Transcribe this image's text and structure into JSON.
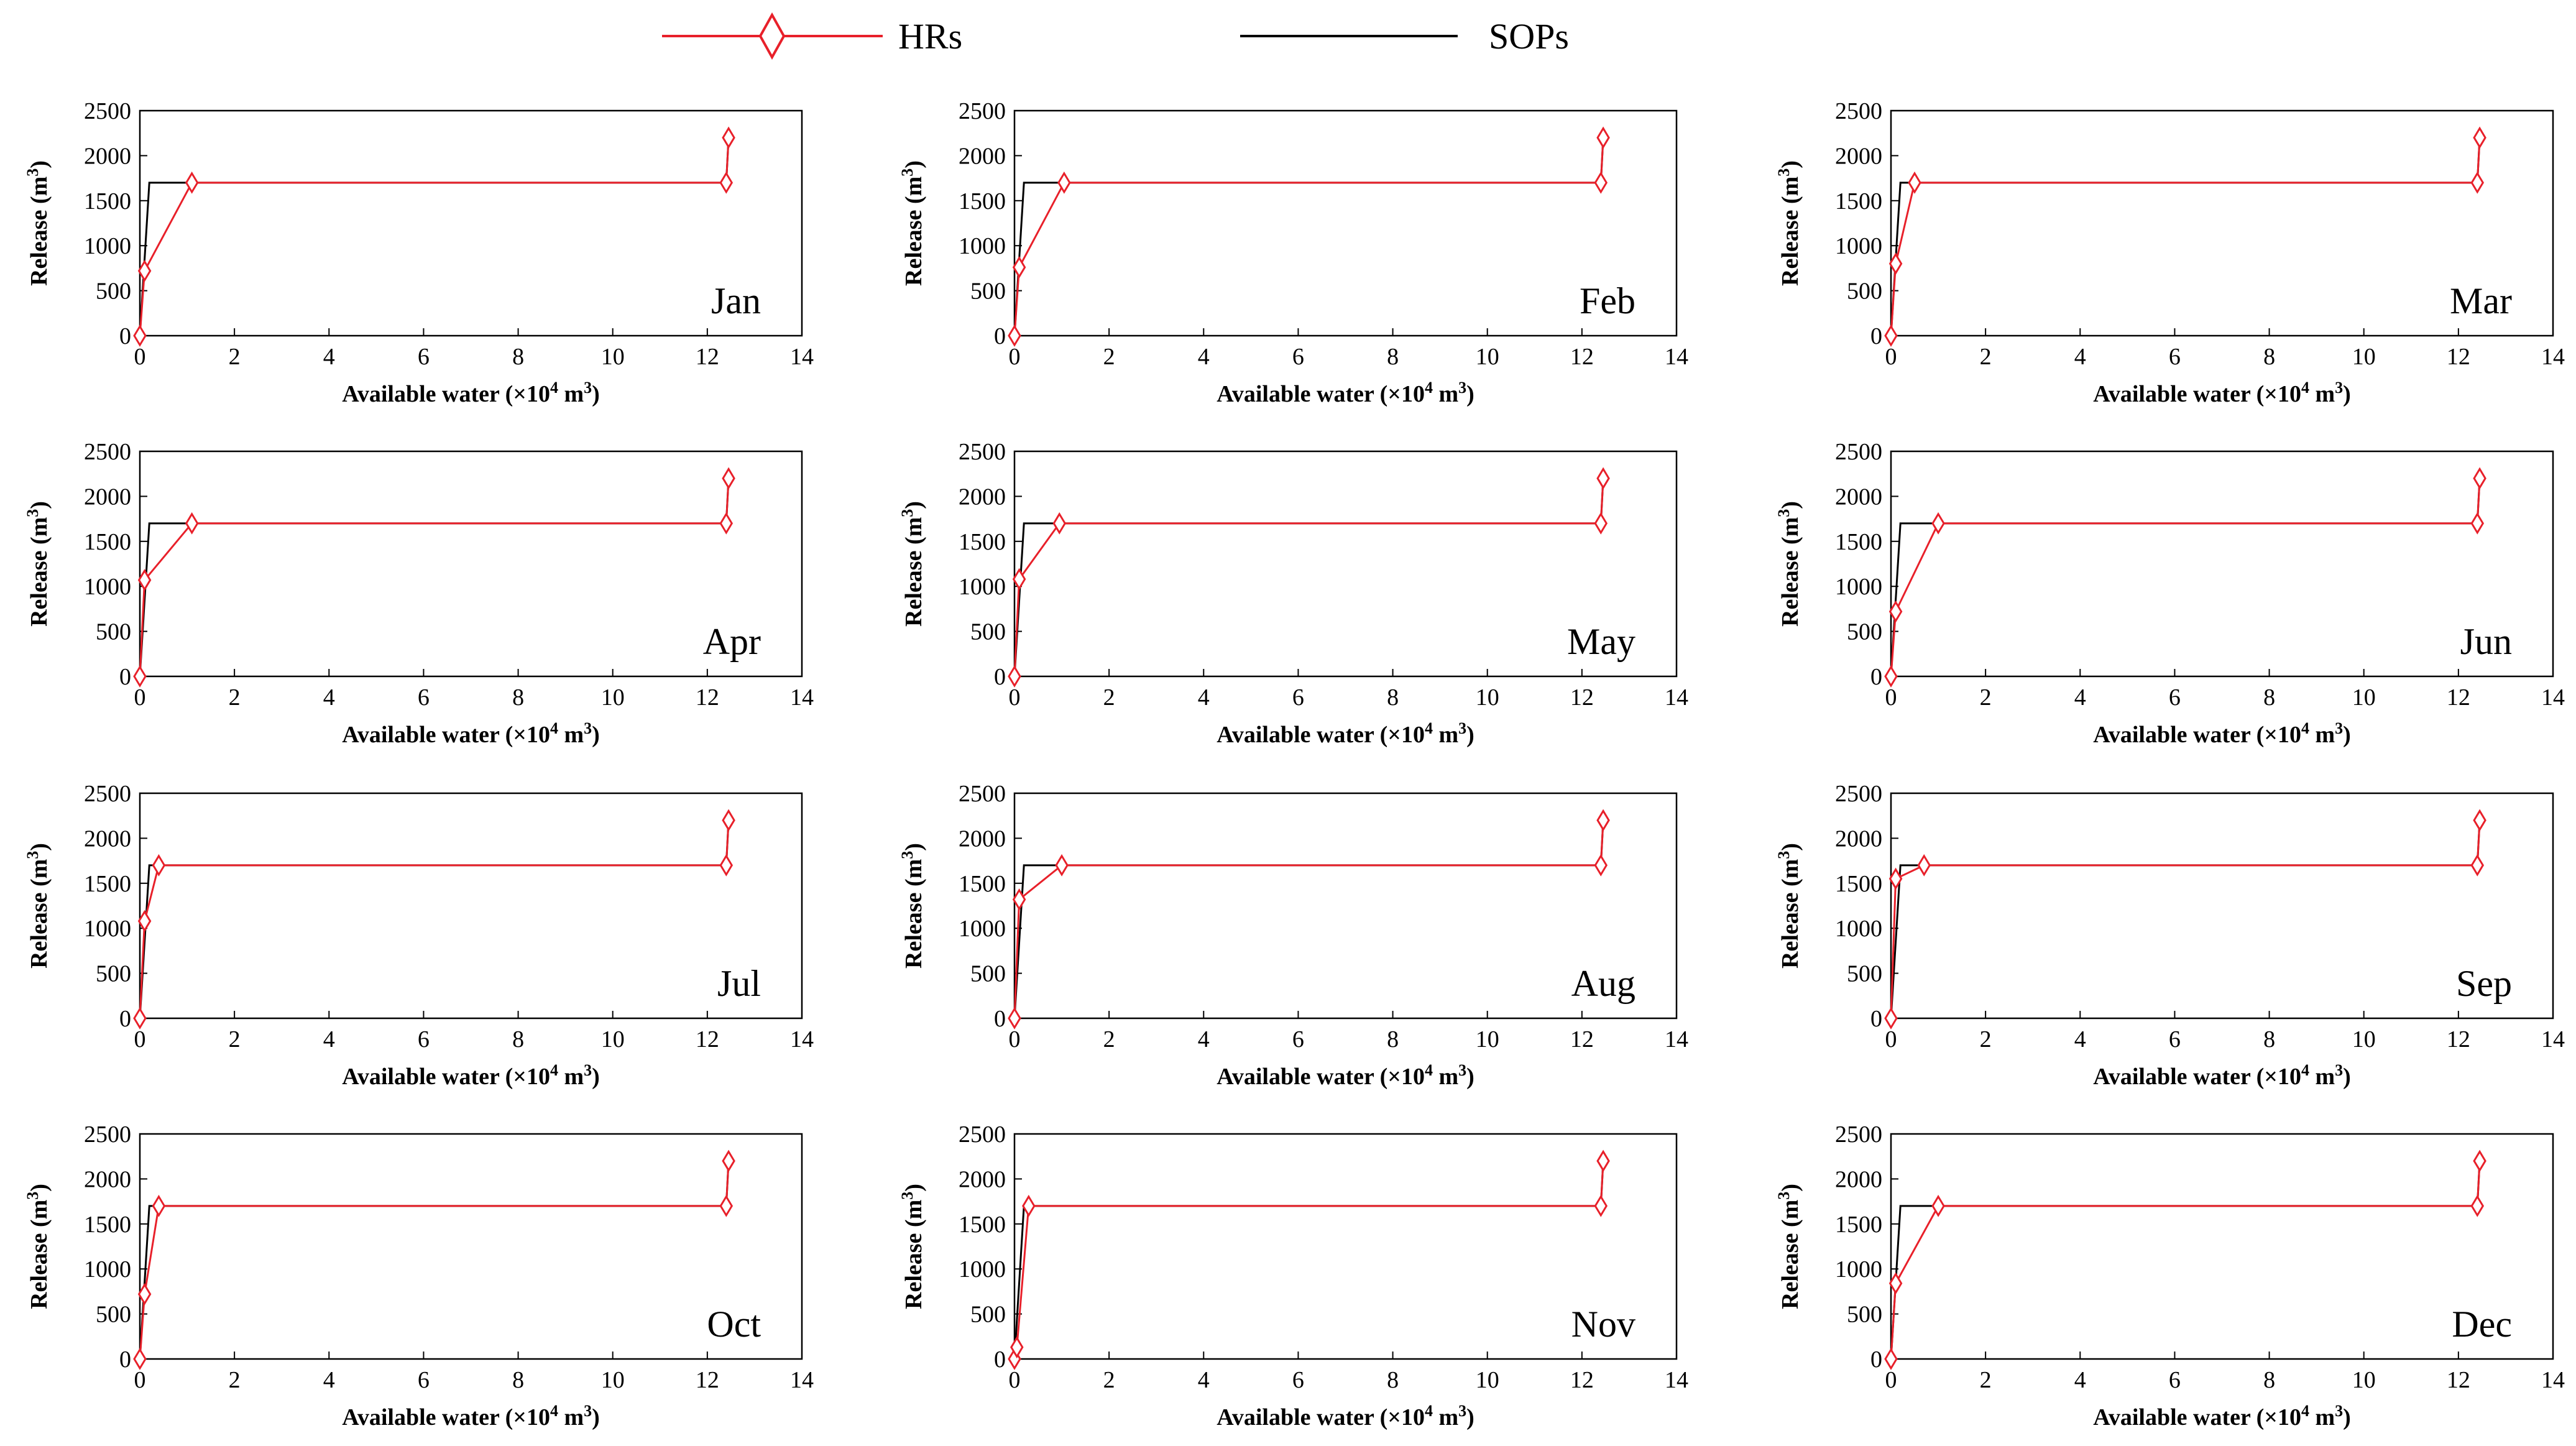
{
  "legend": {
    "hrs_label": "HRs",
    "sops_label": "SOPs"
  },
  "colors": {
    "hrs": "#e8202a",
    "sops": "#000000"
  },
  "axes": {
    "xlabel_text": "Available water (×10",
    "xlabel_exp": "4",
    "xlabel_unit": " m",
    "xlabel_unit_exp": "3",
    "xlabel_close": ")",
    "ylabel_text": "Release (m",
    "ylabel_exp": "3",
    "ylabel_close": ")",
    "xlim": [
      0,
      14
    ],
    "ylim": [
      0,
      2500
    ],
    "xticks": [
      "0",
      "2",
      "4",
      "6",
      "8",
      "10",
      "12",
      "14"
    ],
    "yticks": [
      "0",
      "500",
      "1000",
      "1500",
      "2000",
      "2500"
    ]
  },
  "chart_data": [
    {
      "type": "line",
      "title": "Jan",
      "series": [
        {
          "name": "HRs",
          "x": [
            0,
            0.1,
            1.1,
            12.4,
            12.45
          ],
          "y": [
            0,
            720,
            1700,
            1700,
            2200
          ]
        },
        {
          "name": "SOPs",
          "x": [
            0,
            0.2,
            12.4,
            12.45
          ],
          "y": [
            0,
            1700,
            1700,
            2200
          ]
        }
      ]
    },
    {
      "type": "line",
      "title": "Feb",
      "series": [
        {
          "name": "HRs",
          "x": [
            0,
            0.1,
            1.05,
            12.4,
            12.45
          ],
          "y": [
            0,
            760,
            1700,
            1700,
            2200
          ]
        },
        {
          "name": "SOPs",
          "x": [
            0,
            0.2,
            12.4,
            12.45
          ],
          "y": [
            0,
            1700,
            1700,
            2200
          ]
        }
      ]
    },
    {
      "type": "line",
      "title": "Mar",
      "series": [
        {
          "name": "HRs",
          "x": [
            0,
            0.1,
            0.5,
            12.4,
            12.45
          ],
          "y": [
            0,
            800,
            1700,
            1700,
            2200
          ]
        },
        {
          "name": "SOPs",
          "x": [
            0,
            0.2,
            12.4,
            12.45
          ],
          "y": [
            0,
            1700,
            1700,
            2200
          ]
        }
      ]
    },
    {
      "type": "line",
      "title": "Apr",
      "series": [
        {
          "name": "HRs",
          "x": [
            0,
            0.1,
            1.1,
            12.4,
            12.45
          ],
          "y": [
            0,
            1070,
            1700,
            1700,
            2200
          ]
        },
        {
          "name": "SOPs",
          "x": [
            0,
            0.2,
            12.4,
            12.45
          ],
          "y": [
            0,
            1700,
            1700,
            2200
          ]
        }
      ]
    },
    {
      "type": "line",
      "title": "May",
      "series": [
        {
          "name": "HRs",
          "x": [
            0,
            0.1,
            0.95,
            12.4,
            12.45
          ],
          "y": [
            0,
            1080,
            1700,
            1700,
            2200
          ]
        },
        {
          "name": "SOPs",
          "x": [
            0,
            0.2,
            12.4,
            12.45
          ],
          "y": [
            0,
            1700,
            1700,
            2200
          ]
        }
      ]
    },
    {
      "type": "line",
      "title": "Jun",
      "series": [
        {
          "name": "HRs",
          "x": [
            0,
            0.1,
            1.0,
            12.4,
            12.45
          ],
          "y": [
            0,
            720,
            1700,
            1700,
            2200
          ]
        },
        {
          "name": "SOPs",
          "x": [
            0,
            0.2,
            12.4,
            12.45
          ],
          "y": [
            0,
            1700,
            1700,
            2200
          ]
        }
      ]
    },
    {
      "type": "line",
      "title": "Jul",
      "series": [
        {
          "name": "HRs",
          "x": [
            0,
            0.1,
            0.4,
            12.4,
            12.45
          ],
          "y": [
            0,
            1080,
            1700,
            1700,
            2200
          ]
        },
        {
          "name": "SOPs",
          "x": [
            0,
            0.2,
            12.4,
            12.45
          ],
          "y": [
            0,
            1700,
            1700,
            2200
          ]
        }
      ]
    },
    {
      "type": "line",
      "title": "Aug",
      "series": [
        {
          "name": "HRs",
          "x": [
            0,
            0.1,
            1.0,
            12.4,
            12.45
          ],
          "y": [
            0,
            1320,
            1700,
            1700,
            2200
          ]
        },
        {
          "name": "SOPs",
          "x": [
            0,
            0.2,
            12.4,
            12.45
          ],
          "y": [
            0,
            1700,
            1700,
            2200
          ]
        }
      ]
    },
    {
      "type": "line",
      "title": "Sep",
      "series": [
        {
          "name": "HRs",
          "x": [
            0,
            0.1,
            0.7,
            12.4,
            12.45
          ],
          "y": [
            0,
            1550,
            1700,
            1700,
            2200
          ]
        },
        {
          "name": "SOPs",
          "x": [
            0,
            0.2,
            12.4,
            12.45
          ],
          "y": [
            0,
            1700,
            1700,
            2200
          ]
        }
      ]
    },
    {
      "type": "line",
      "title": "Oct",
      "series": [
        {
          "name": "HRs",
          "x": [
            0,
            0.1,
            0.4,
            12.4,
            12.45
          ],
          "y": [
            0,
            720,
            1700,
            1700,
            2200
          ]
        },
        {
          "name": "SOPs",
          "x": [
            0,
            0.2,
            12.4,
            12.45
          ],
          "y": [
            0,
            1700,
            1700,
            2200
          ]
        }
      ]
    },
    {
      "type": "line",
      "title": "Nov",
      "series": [
        {
          "name": "HRs",
          "x": [
            0,
            0.05,
            0.3,
            12.4,
            12.45
          ],
          "y": [
            0,
            130,
            1700,
            1700,
            2200
          ]
        },
        {
          "name": "SOPs",
          "x": [
            0,
            0.2,
            12.4,
            12.45
          ],
          "y": [
            0,
            1700,
            1700,
            2200
          ]
        }
      ]
    },
    {
      "type": "line",
      "title": "Dec",
      "series": [
        {
          "name": "HRs",
          "x": [
            0,
            0.1,
            1.0,
            12.4,
            12.45
          ],
          "y": [
            0,
            840,
            1700,
            1700,
            2200
          ]
        },
        {
          "name": "SOPs",
          "x": [
            0,
            0.2,
            12.4,
            12.45
          ],
          "y": [
            0,
            1700,
            1700,
            2200
          ]
        }
      ]
    }
  ]
}
